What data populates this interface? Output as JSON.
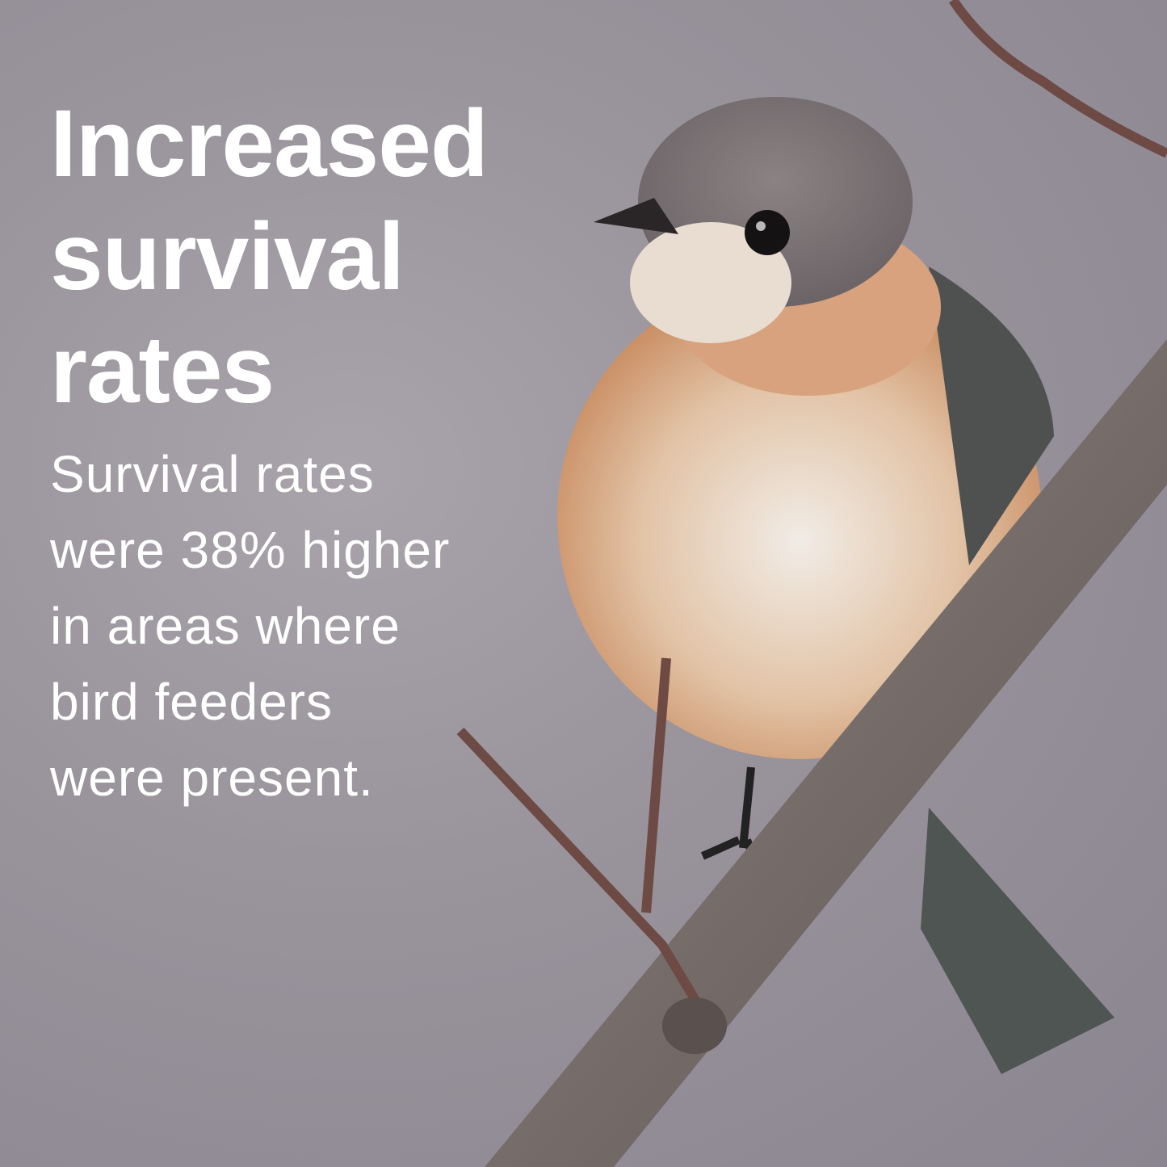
{
  "headline": {
    "lines": [
      "Increased",
      "survival",
      "rates"
    ]
  },
  "body": {
    "lines": [
      "Survival rates",
      "were 38% higher",
      "in areas where",
      "bird feeders",
      "were present."
    ]
  },
  "colors": {
    "text": "#ffffff",
    "background": "#9a949c",
    "branch": "#7d7370",
    "bird_breast": "#d8a07a",
    "bird_head": "#7a7274"
  }
}
